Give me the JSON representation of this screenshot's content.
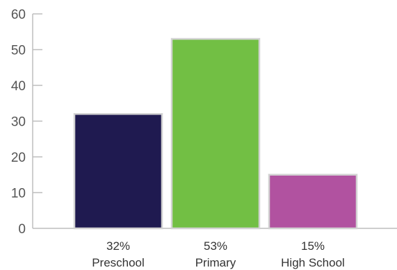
{
  "chart_data": {
    "type": "bar",
    "title": "",
    "xlabel": "",
    "ylabel": "",
    "ylim": [
      0,
      60
    ],
    "yticks": [
      0,
      10,
      20,
      30,
      40,
      50,
      60
    ],
    "grid": false,
    "legend": "none",
    "categories": [
      "Preschool",
      "Primary",
      "High School"
    ],
    "values": [
      32,
      53,
      15
    ],
    "data_labels": [
      "32%",
      "53%",
      "15%"
    ],
    "colors": [
      "#1f1a50",
      "#72bf44",
      "#b152a0"
    ]
  }
}
